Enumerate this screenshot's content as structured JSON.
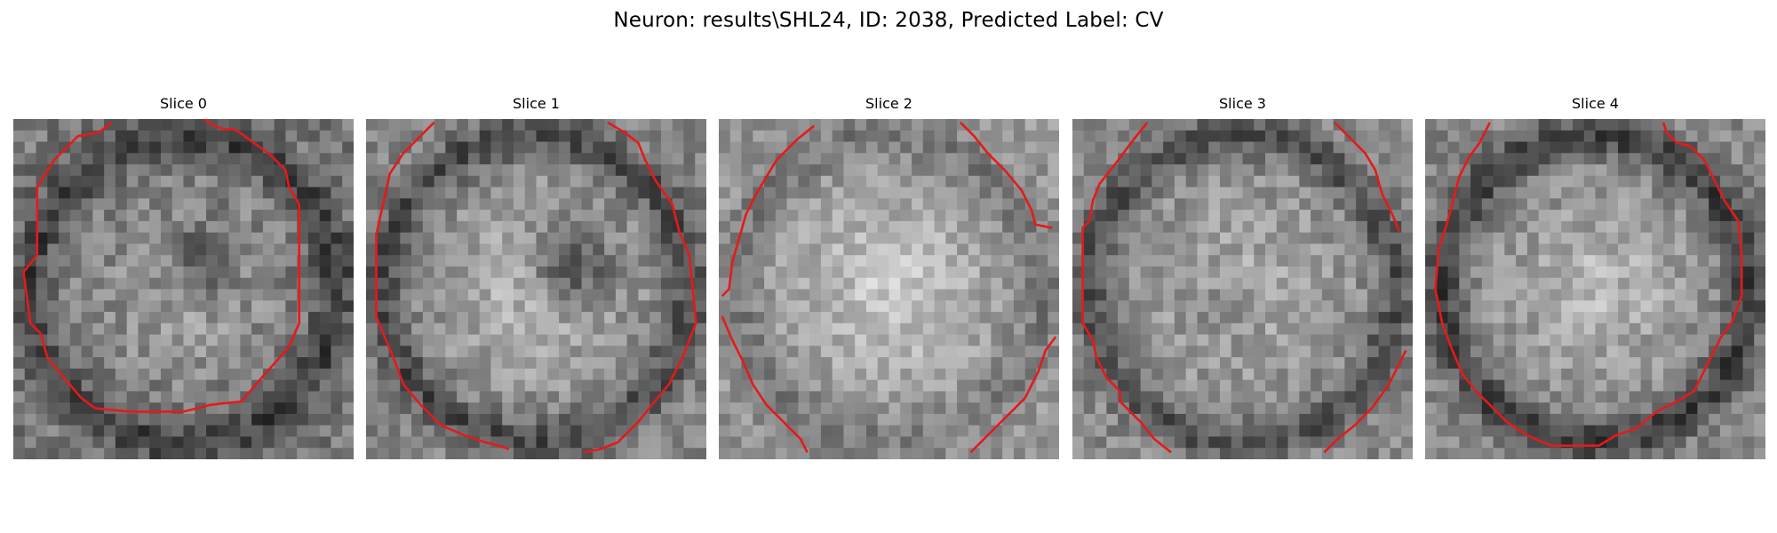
{
  "figure": {
    "title": "Neuron: results\\SHL24, ID: 2038, Predicted Label: CV"
  },
  "colors": {
    "contour": "#e41a1c",
    "background": "#ffffff"
  },
  "image_grid": 30,
  "slices": [
    {
      "label": "Slice 0",
      "texture": {
        "seed": 11,
        "base": 120,
        "center_gain": 45,
        "ring_gain": -55,
        "noise": 70,
        "dark_blob": [
          0.55,
          0.42,
          0.1,
          70
        ]
      },
      "contour": [
        [
          [
            0.29,
            0.01
          ],
          [
            0.25,
            0.04
          ],
          [
            0.19,
            0.05
          ],
          [
            0.12,
            0.12
          ],
          [
            0.07,
            0.2
          ],
          [
            0.07,
            0.4
          ],
          [
            0.03,
            0.45
          ],
          [
            0.05,
            0.6
          ],
          [
            0.08,
            0.63
          ],
          [
            0.1,
            0.7
          ],
          [
            0.14,
            0.75
          ],
          [
            0.2,
            0.82
          ],
          [
            0.24,
            0.85
          ],
          [
            0.34,
            0.86
          ],
          [
            0.5,
            0.86
          ],
          [
            0.58,
            0.84
          ],
          [
            0.67,
            0.83
          ],
          [
            0.73,
            0.76
          ],
          [
            0.81,
            0.67
          ],
          [
            0.84,
            0.6
          ],
          [
            0.84,
            0.25
          ],
          [
            0.81,
            0.2
          ],
          [
            0.8,
            0.15
          ],
          [
            0.77,
            0.12
          ],
          [
            0.75,
            0.1
          ],
          [
            0.72,
            0.08
          ],
          [
            0.68,
            0.05
          ],
          [
            0.65,
            0.03
          ],
          [
            0.62,
            0.03
          ],
          [
            0.59,
            0.02
          ],
          [
            0.56,
            0.0
          ]
        ]
      ]
    },
    {
      "label": "Slice 1",
      "texture": {
        "seed": 23,
        "base": 135,
        "center_gain": 60,
        "ring_gain": -60,
        "noise": 65,
        "dark_blob": [
          0.6,
          0.44,
          0.12,
          90
        ]
      },
      "contour": [
        [
          [
            0.2,
            0.01
          ],
          [
            0.15,
            0.06
          ],
          [
            0.11,
            0.1
          ],
          [
            0.07,
            0.16
          ],
          [
            0.05,
            0.25
          ],
          [
            0.03,
            0.34
          ],
          [
            0.03,
            0.58
          ],
          [
            0.05,
            0.63
          ],
          [
            0.08,
            0.7
          ],
          [
            0.11,
            0.78
          ],
          [
            0.16,
            0.84
          ],
          [
            0.22,
            0.9
          ],
          [
            0.29,
            0.93
          ],
          [
            0.35,
            0.95
          ],
          [
            0.39,
            0.96
          ],
          [
            0.42,
            0.97
          ]
        ],
        [
          [
            0.71,
            0.01
          ],
          [
            0.76,
            0.04
          ],
          [
            0.8,
            0.07
          ],
          [
            0.82,
            0.12
          ],
          [
            0.85,
            0.18
          ],
          [
            0.9,
            0.25
          ],
          [
            0.92,
            0.33
          ],
          [
            0.95,
            0.4
          ],
          [
            0.97,
            0.6
          ],
          [
            0.93,
            0.7
          ],
          [
            0.89,
            0.78
          ],
          [
            0.84,
            0.84
          ],
          [
            0.8,
            0.89
          ],
          [
            0.74,
            0.95
          ],
          [
            0.69,
            0.97
          ],
          [
            0.64,
            0.98
          ]
        ]
      ]
    },
    {
      "label": "Slice 2",
      "texture": {
        "seed": 37,
        "base": 150,
        "center_gain": 55,
        "ring_gain": -30,
        "noise": 60,
        "dark_blob": [
          0.5,
          0.55,
          0.06,
          0
        ]
      },
      "contour": [
        [
          [
            0.28,
            0.02
          ],
          [
            0.23,
            0.06
          ],
          [
            0.17,
            0.12
          ],
          [
            0.14,
            0.17
          ],
          [
            0.11,
            0.22
          ],
          [
            0.08,
            0.28
          ],
          [
            0.06,
            0.35
          ],
          [
            0.04,
            0.42
          ],
          [
            0.03,
            0.5
          ],
          [
            0.01,
            0.52
          ]
        ],
        [
          [
            0.01,
            0.58
          ],
          [
            0.04,
            0.65
          ],
          [
            0.07,
            0.71
          ],
          [
            0.1,
            0.78
          ],
          [
            0.14,
            0.84
          ],
          [
            0.19,
            0.89
          ],
          [
            0.24,
            0.94
          ],
          [
            0.26,
            0.98
          ]
        ],
        [
          [
            0.71,
            0.01
          ],
          [
            0.75,
            0.05
          ],
          [
            0.79,
            0.1
          ],
          [
            0.84,
            0.15
          ],
          [
            0.89,
            0.21
          ],
          [
            0.92,
            0.27
          ],
          [
            0.93,
            0.31
          ],
          [
            0.98,
            0.32
          ]
        ],
        [
          [
            0.99,
            0.64
          ],
          [
            0.96,
            0.68
          ],
          [
            0.94,
            0.74
          ],
          [
            0.9,
            0.82
          ],
          [
            0.84,
            0.88
          ],
          [
            0.78,
            0.94
          ],
          [
            0.74,
            0.98
          ]
        ]
      ]
    },
    {
      "label": "Slice 3",
      "texture": {
        "seed": 53,
        "base": 140,
        "center_gain": 35,
        "ring_gain": -60,
        "noise": 65,
        "dark_blob": [
          0.45,
          0.55,
          0.1,
          25
        ]
      },
      "contour": [
        [
          [
            0.22,
            0.01
          ],
          [
            0.18,
            0.06
          ],
          [
            0.15,
            0.1
          ],
          [
            0.12,
            0.14
          ],
          [
            0.08,
            0.19
          ],
          [
            0.06,
            0.24
          ],
          [
            0.05,
            0.3
          ],
          [
            0.03,
            0.32
          ],
          [
            0.03,
            0.6
          ],
          [
            0.06,
            0.65
          ],
          [
            0.07,
            0.7
          ],
          [
            0.1,
            0.76
          ],
          [
            0.14,
            0.8
          ],
          [
            0.14,
            0.83
          ],
          [
            0.16,
            0.85
          ],
          [
            0.2,
            0.89
          ],
          [
            0.24,
            0.94
          ],
          [
            0.29,
            0.98
          ]
        ],
        [
          [
            0.77,
            0.01
          ],
          [
            0.82,
            0.06
          ],
          [
            0.86,
            0.1
          ],
          [
            0.89,
            0.15
          ],
          [
            0.91,
            0.22
          ],
          [
            0.94,
            0.28
          ],
          [
            0.96,
            0.33
          ]
        ],
        [
          [
            0.98,
            0.68
          ],
          [
            0.96,
            0.72
          ],
          [
            0.93,
            0.78
          ],
          [
            0.88,
            0.85
          ],
          [
            0.83,
            0.9
          ],
          [
            0.78,
            0.94
          ],
          [
            0.74,
            0.98
          ]
        ]
      ]
    },
    {
      "label": "Slice 4",
      "texture": {
        "seed": 71,
        "base": 135,
        "center_gain": 55,
        "ring_gain": -70,
        "noise": 65,
        "dark_blob": [
          0.5,
          0.5,
          0.06,
          0
        ]
      },
      "contour": [
        [
          [
            0.19,
            0.01
          ],
          [
            0.16,
            0.07
          ],
          [
            0.13,
            0.11
          ],
          [
            0.1,
            0.17
          ],
          [
            0.08,
            0.25
          ],
          [
            0.06,
            0.32
          ],
          [
            0.04,
            0.38
          ],
          [
            0.03,
            0.5
          ],
          [
            0.05,
            0.6
          ],
          [
            0.08,
            0.68
          ],
          [
            0.11,
            0.75
          ],
          [
            0.15,
            0.8
          ],
          [
            0.2,
            0.85
          ],
          [
            0.24,
            0.89
          ],
          [
            0.3,
            0.93
          ],
          [
            0.37,
            0.96
          ],
          [
            0.51,
            0.96
          ],
          [
            0.56,
            0.93
          ],
          [
            0.62,
            0.91
          ],
          [
            0.68,
            0.86
          ],
          [
            0.74,
            0.83
          ],
          [
            0.79,
            0.8
          ],
          [
            0.82,
            0.74
          ],
          [
            0.84,
            0.7
          ],
          [
            0.87,
            0.64
          ],
          [
            0.9,
            0.6
          ],
          [
            0.93,
            0.52
          ],
          [
            0.93,
            0.4
          ],
          [
            0.92,
            0.3
          ],
          [
            0.88,
            0.24
          ],
          [
            0.85,
            0.18
          ],
          [
            0.82,
            0.12
          ],
          [
            0.78,
            0.08
          ],
          [
            0.74,
            0.07
          ],
          [
            0.71,
            0.04
          ],
          [
            0.7,
            0.01
          ]
        ]
      ]
    }
  ]
}
